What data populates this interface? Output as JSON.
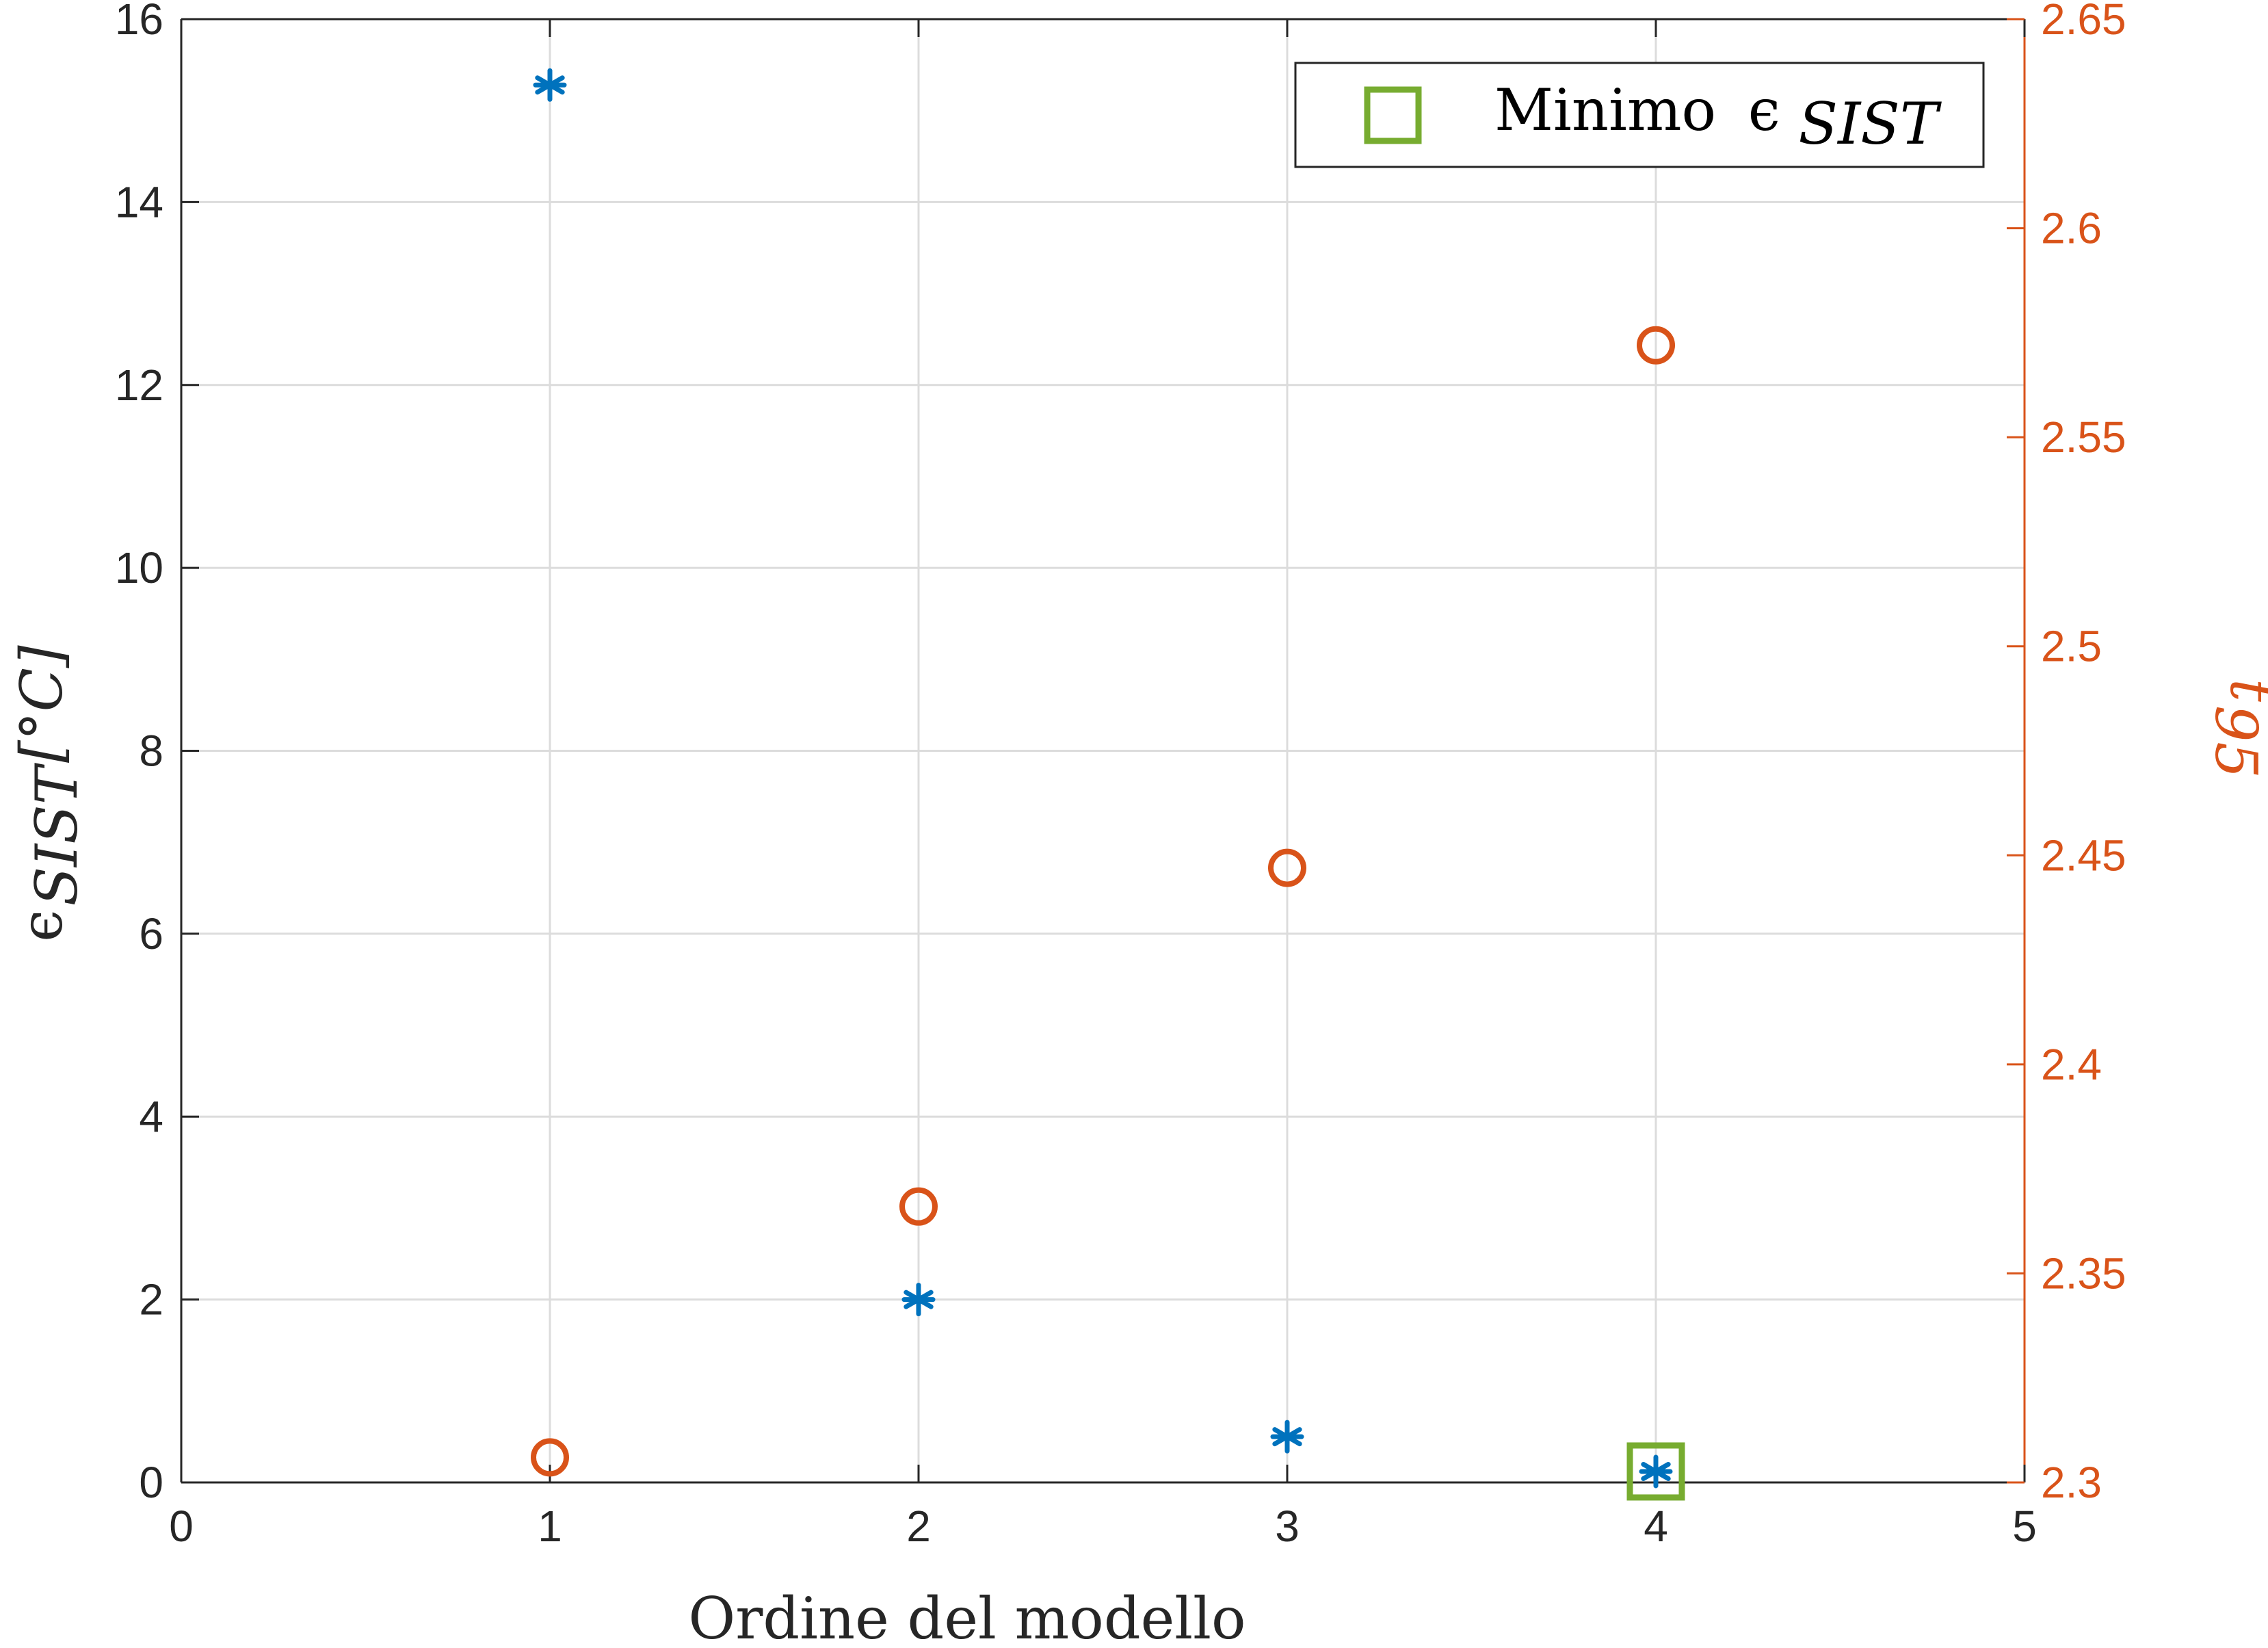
{
  "chart_data": {
    "type": "scatter",
    "xlabel": "Ordine del modello",
    "ylabel_left": {
      "base": "ϵ",
      "sub": "SIST",
      "unit": "[°C]"
    },
    "ylabel_right": {
      "base": "t",
      "sub": "95"
    },
    "xlim": [
      0,
      5
    ],
    "ylim_left": [
      0,
      16
    ],
    "ylim_right": [
      2.3,
      2.65
    ],
    "xticks": [
      "0",
      "1",
      "2",
      "3",
      "4",
      "5"
    ],
    "yticks_left": [
      "0",
      "2",
      "4",
      "6",
      "8",
      "10",
      "12",
      "14",
      "16"
    ],
    "yticks_right": [
      "2.3",
      "2.35",
      "2.4",
      "2.45",
      "2.5",
      "2.55",
      "2.6",
      "2.65"
    ],
    "grid": true,
    "legend": {
      "position": "top-right",
      "label": "Minimo",
      "symbol": "ϵ",
      "sub": "SIST"
    },
    "series": [
      {
        "axis": "left",
        "marker": "asterisk",
        "color": "#0072BD",
        "x": [
          1,
          2,
          3,
          4
        ],
        "y": [
          15.28,
          2.0,
          0.5,
          0.12
        ]
      },
      {
        "axis": "right",
        "marker": "circle",
        "color": "#D95319",
        "x": [
          1,
          2,
          3,
          4
        ],
        "y": [
          2.306,
          2.366,
          2.447,
          2.572
        ]
      },
      {
        "axis": "left",
        "marker": "square",
        "color": "#77AC30",
        "x": [
          4
        ],
        "y": [
          0.12
        ]
      }
    ]
  }
}
